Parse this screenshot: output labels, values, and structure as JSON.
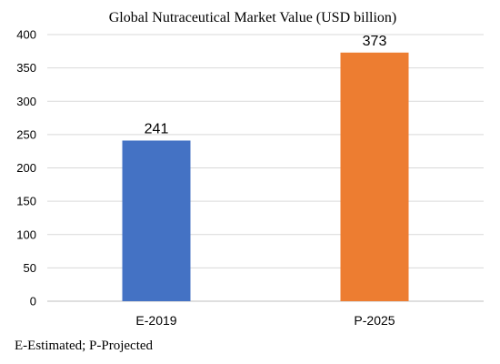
{
  "chart_data": {
    "type": "bar",
    "title": "Global Nutraceutical Market Value (USD billion)",
    "categories": [
      "E-2019",
      "P-2025"
    ],
    "values": [
      241,
      373
    ],
    "colors": [
      "#4472c4",
      "#ed7d31"
    ],
    "ylim": [
      0,
      400
    ],
    "yticks": [
      0,
      50,
      100,
      150,
      200,
      250,
      300,
      350,
      400
    ],
    "grid": true,
    "legend": "none"
  },
  "footnote": "E-Estimated; P-Projected"
}
